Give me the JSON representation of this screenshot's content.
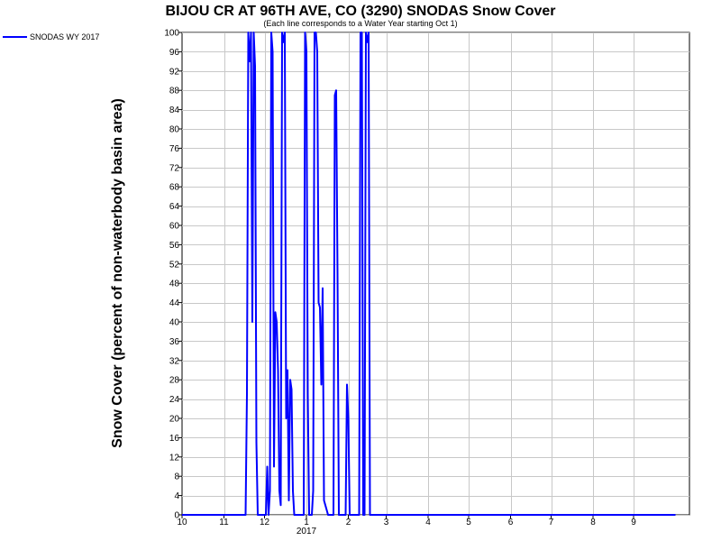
{
  "chart_data": {
    "type": "line",
    "title": "BIJOU CR AT 96TH AVE, CO (3290) SNODAS Snow Cover",
    "subtitle": "(Each line corresponds to a Water Year starting Oct 1)",
    "ylabel": "Snow Cover (percent of non-waterbody basin area)",
    "xlabel": "",
    "ylim": [
      0,
      100
    ],
    "yticks": [
      0,
      4,
      8,
      12,
      16,
      20,
      24,
      28,
      32,
      36,
      40,
      44,
      48,
      52,
      56,
      60,
      64,
      68,
      72,
      76,
      80,
      84,
      88,
      92,
      96,
      100
    ],
    "xlim": [
      0,
      365
    ],
    "xticks": [
      {
        "x": 0,
        "label": "10"
      },
      {
        "x": 31,
        "label": "11"
      },
      {
        "x": 61,
        "label": "12"
      },
      {
        "x": 92,
        "label": "1"
      },
      {
        "x": 123,
        "label": "2"
      },
      {
        "x": 151,
        "label": "3"
      },
      {
        "x": 182,
        "label": "4"
      },
      {
        "x": 212,
        "label": "5"
      },
      {
        "x": 243,
        "label": "6"
      },
      {
        "x": 273,
        "label": "7"
      },
      {
        "x": 304,
        "label": "8"
      },
      {
        "x": 334,
        "label": "9"
      }
    ],
    "year_label": "2017",
    "year_label_x": 92,
    "grid": true,
    "legend": "top-left",
    "series": [
      {
        "name": "SNODAS WY 2017",
        "color": "#0000ff",
        "x": [
          0,
          47,
          48,
          49,
          50,
          51,
          52,
          53,
          54,
          55,
          56,
          57,
          58,
          59,
          60,
          62,
          63,
          64,
          65,
          66,
          67,
          68,
          69,
          70,
          71,
          72,
          73,
          74,
          75,
          76,
          77,
          78,
          79,
          80,
          81,
          82,
          83,
          84,
          85,
          86,
          87,
          88,
          89,
          90,
          91,
          92,
          93,
          94,
          95,
          96,
          97,
          98,
          99,
          100,
          101,
          102,
          103,
          104,
          105,
          106,
          107,
          108,
          109,
          110,
          111,
          112,
          113,
          114,
          115,
          116,
          117,
          118,
          119,
          120,
          121,
          122,
          123,
          124,
          125,
          126,
          127,
          128,
          129,
          130,
          131,
          132,
          133,
          134,
          135,
          136,
          137,
          138,
          139,
          140,
          141,
          142,
          143,
          144,
          145,
          146,
          147,
          148,
          149,
          150,
          151,
          152,
          153,
          154,
          155,
          160,
          170,
          180,
          365
        ],
        "y": [
          0,
          0,
          25,
          100,
          94,
          100,
          40,
          100,
          93,
          15,
          0,
          0,
          0,
          0,
          0,
          0,
          10,
          0,
          5,
          100,
          96,
          10,
          42,
          40,
          30,
          5,
          2,
          100,
          98,
          100,
          20,
          30,
          3,
          28,
          26,
          5,
          0,
          0,
          0,
          0,
          0,
          0,
          0,
          0,
          100,
          96,
          25,
          0,
          0,
          0,
          5,
          100,
          100,
          96,
          44,
          43,
          27,
          47,
          3,
          2,
          1,
          0,
          0,
          0,
          0,
          0,
          87,
          88,
          50,
          0,
          0,
          0,
          0,
          0,
          0,
          27,
          20,
          0,
          0,
          0,
          0,
          0,
          0,
          0,
          0,
          100,
          100,
          0,
          0,
          100,
          98,
          100,
          0,
          0,
          0,
          0,
          0,
          0,
          0,
          0,
          0,
          0,
          0,
          0,
          0,
          0,
          0,
          0,
          0,
          0,
          0,
          0,
          0
        ]
      }
    ]
  }
}
